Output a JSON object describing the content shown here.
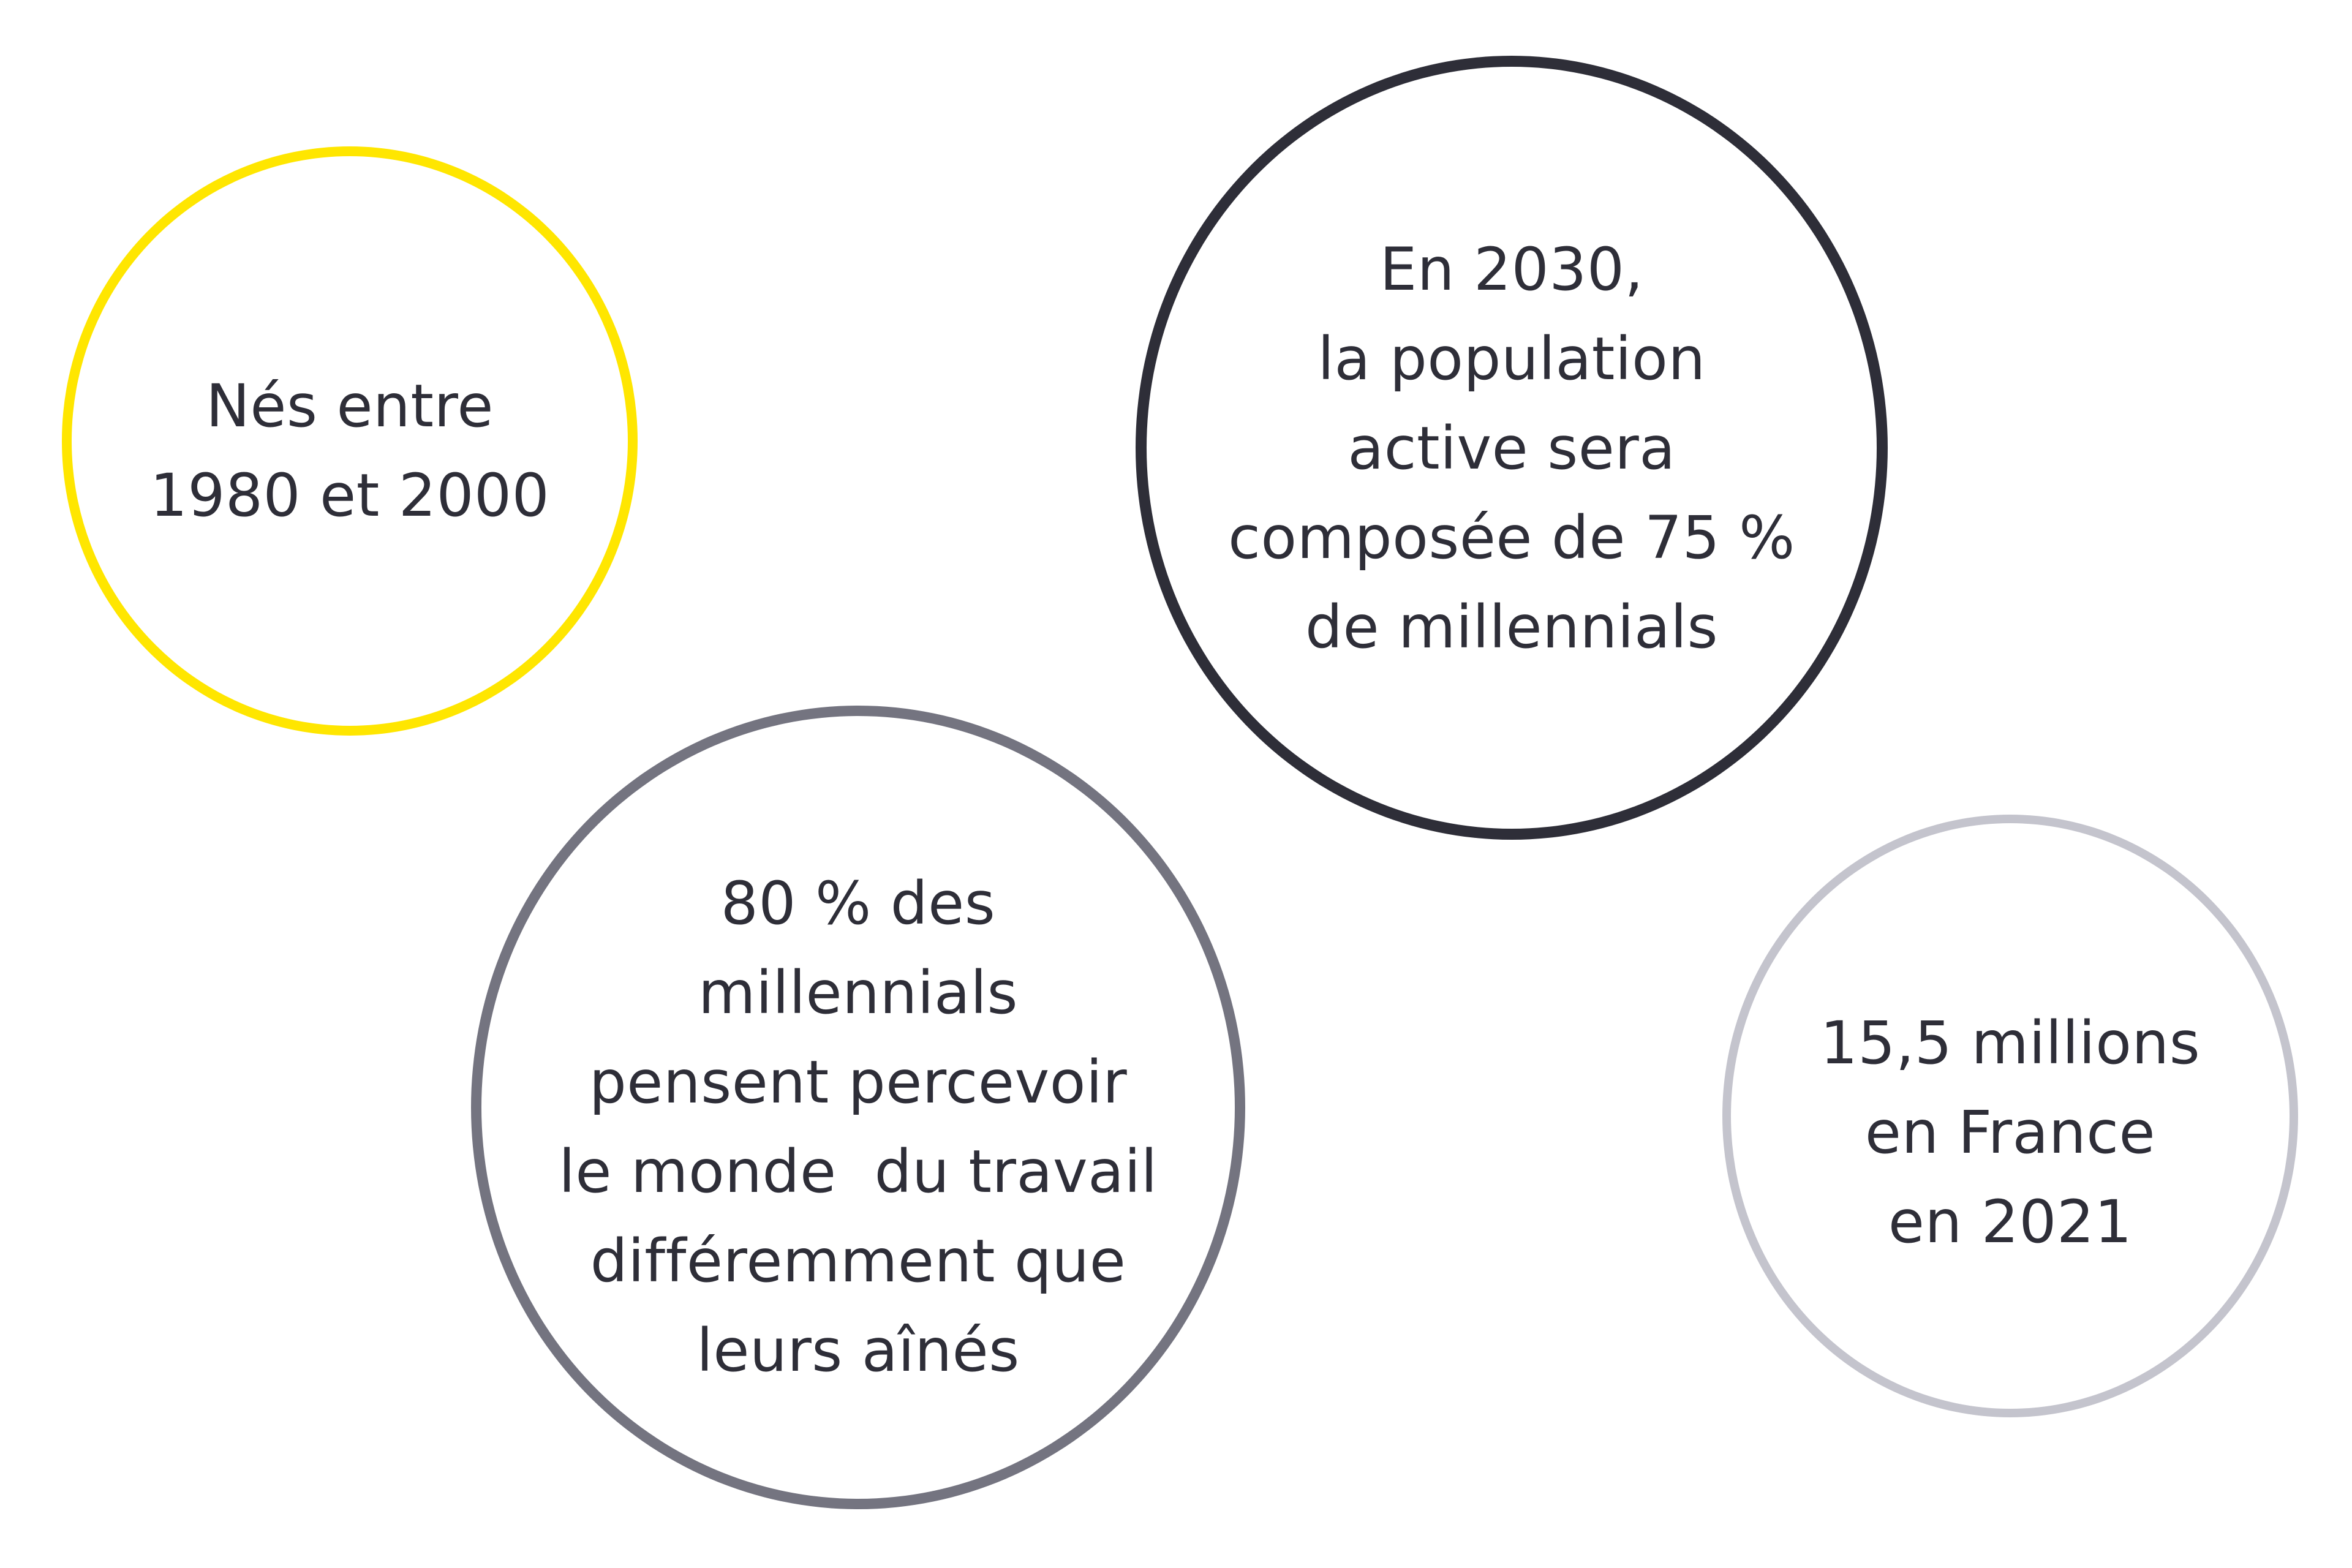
{
  "colors": {
    "yellow": "#ffe600",
    "dark": "#2e2e38",
    "mid_gray": "#747480",
    "light_gray": "#c4c4cd",
    "text": "#2e2e38"
  },
  "bubbles": [
    {
      "lines": [
        "Nés entre",
        "1980 et 2000"
      ]
    },
    {
      "lines": [
        "En 2030,",
        "la population",
        "active sera",
        "composée de 75 %",
        "de millennials"
      ]
    },
    {
      "lines": [
        "80 % des",
        "millennials",
        "pensent percevoir",
        "le monde  du travail",
        "différemment que",
        "leurs aînés"
      ]
    },
    {
      "lines": [
        "15,5 millions",
        "en France",
        "en 2021"
      ]
    }
  ]
}
